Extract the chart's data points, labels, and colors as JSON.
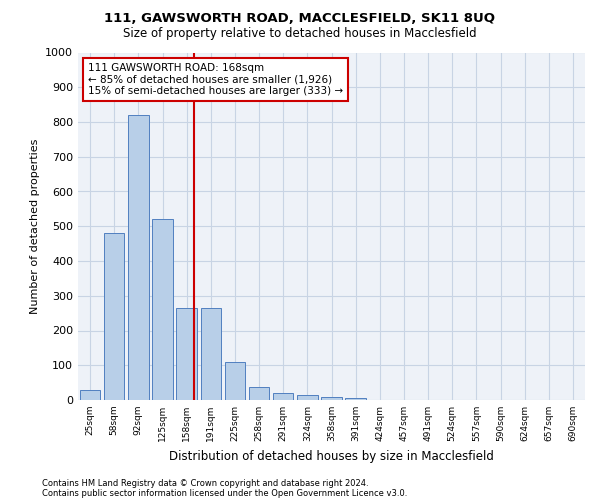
{
  "title1": "111, GAWSWORTH ROAD, MACCLESFIELD, SK11 8UQ",
  "title2": "Size of property relative to detached houses in Macclesfield",
  "xlabel": "Distribution of detached houses by size in Macclesfield",
  "ylabel": "Number of detached properties",
  "categories": [
    "25sqm",
    "58sqm",
    "92sqm",
    "125sqm",
    "158sqm",
    "191sqm",
    "225sqm",
    "258sqm",
    "291sqm",
    "324sqm",
    "358sqm",
    "391sqm",
    "424sqm",
    "457sqm",
    "491sqm",
    "524sqm",
    "557sqm",
    "590sqm",
    "624sqm",
    "657sqm",
    "690sqm"
  ],
  "values": [
    28,
    480,
    820,
    520,
    265,
    265,
    110,
    38,
    20,
    13,
    8,
    5,
    0,
    0,
    0,
    0,
    0,
    0,
    0,
    0,
    0
  ],
  "bar_color": "#b8cfe8",
  "bar_edge_color": "#5080c0",
  "vline_color": "#cc0000",
  "annotation_text": "111 GAWSWORTH ROAD: 168sqm\n← 85% of detached houses are smaller (1,926)\n15% of semi-detached houses are larger (333) →",
  "annotation_box_color": "#cc0000",
  "ylim": [
    0,
    1000
  ],
  "yticks": [
    0,
    100,
    200,
    300,
    400,
    500,
    600,
    700,
    800,
    900,
    1000
  ],
  "footnote1": "Contains HM Land Registry data © Crown copyright and database right 2024.",
  "footnote2": "Contains public sector information licensed under the Open Government Licence v3.0.",
  "grid_color": "#c8d4e4",
  "bg_color": "#eef2f8"
}
